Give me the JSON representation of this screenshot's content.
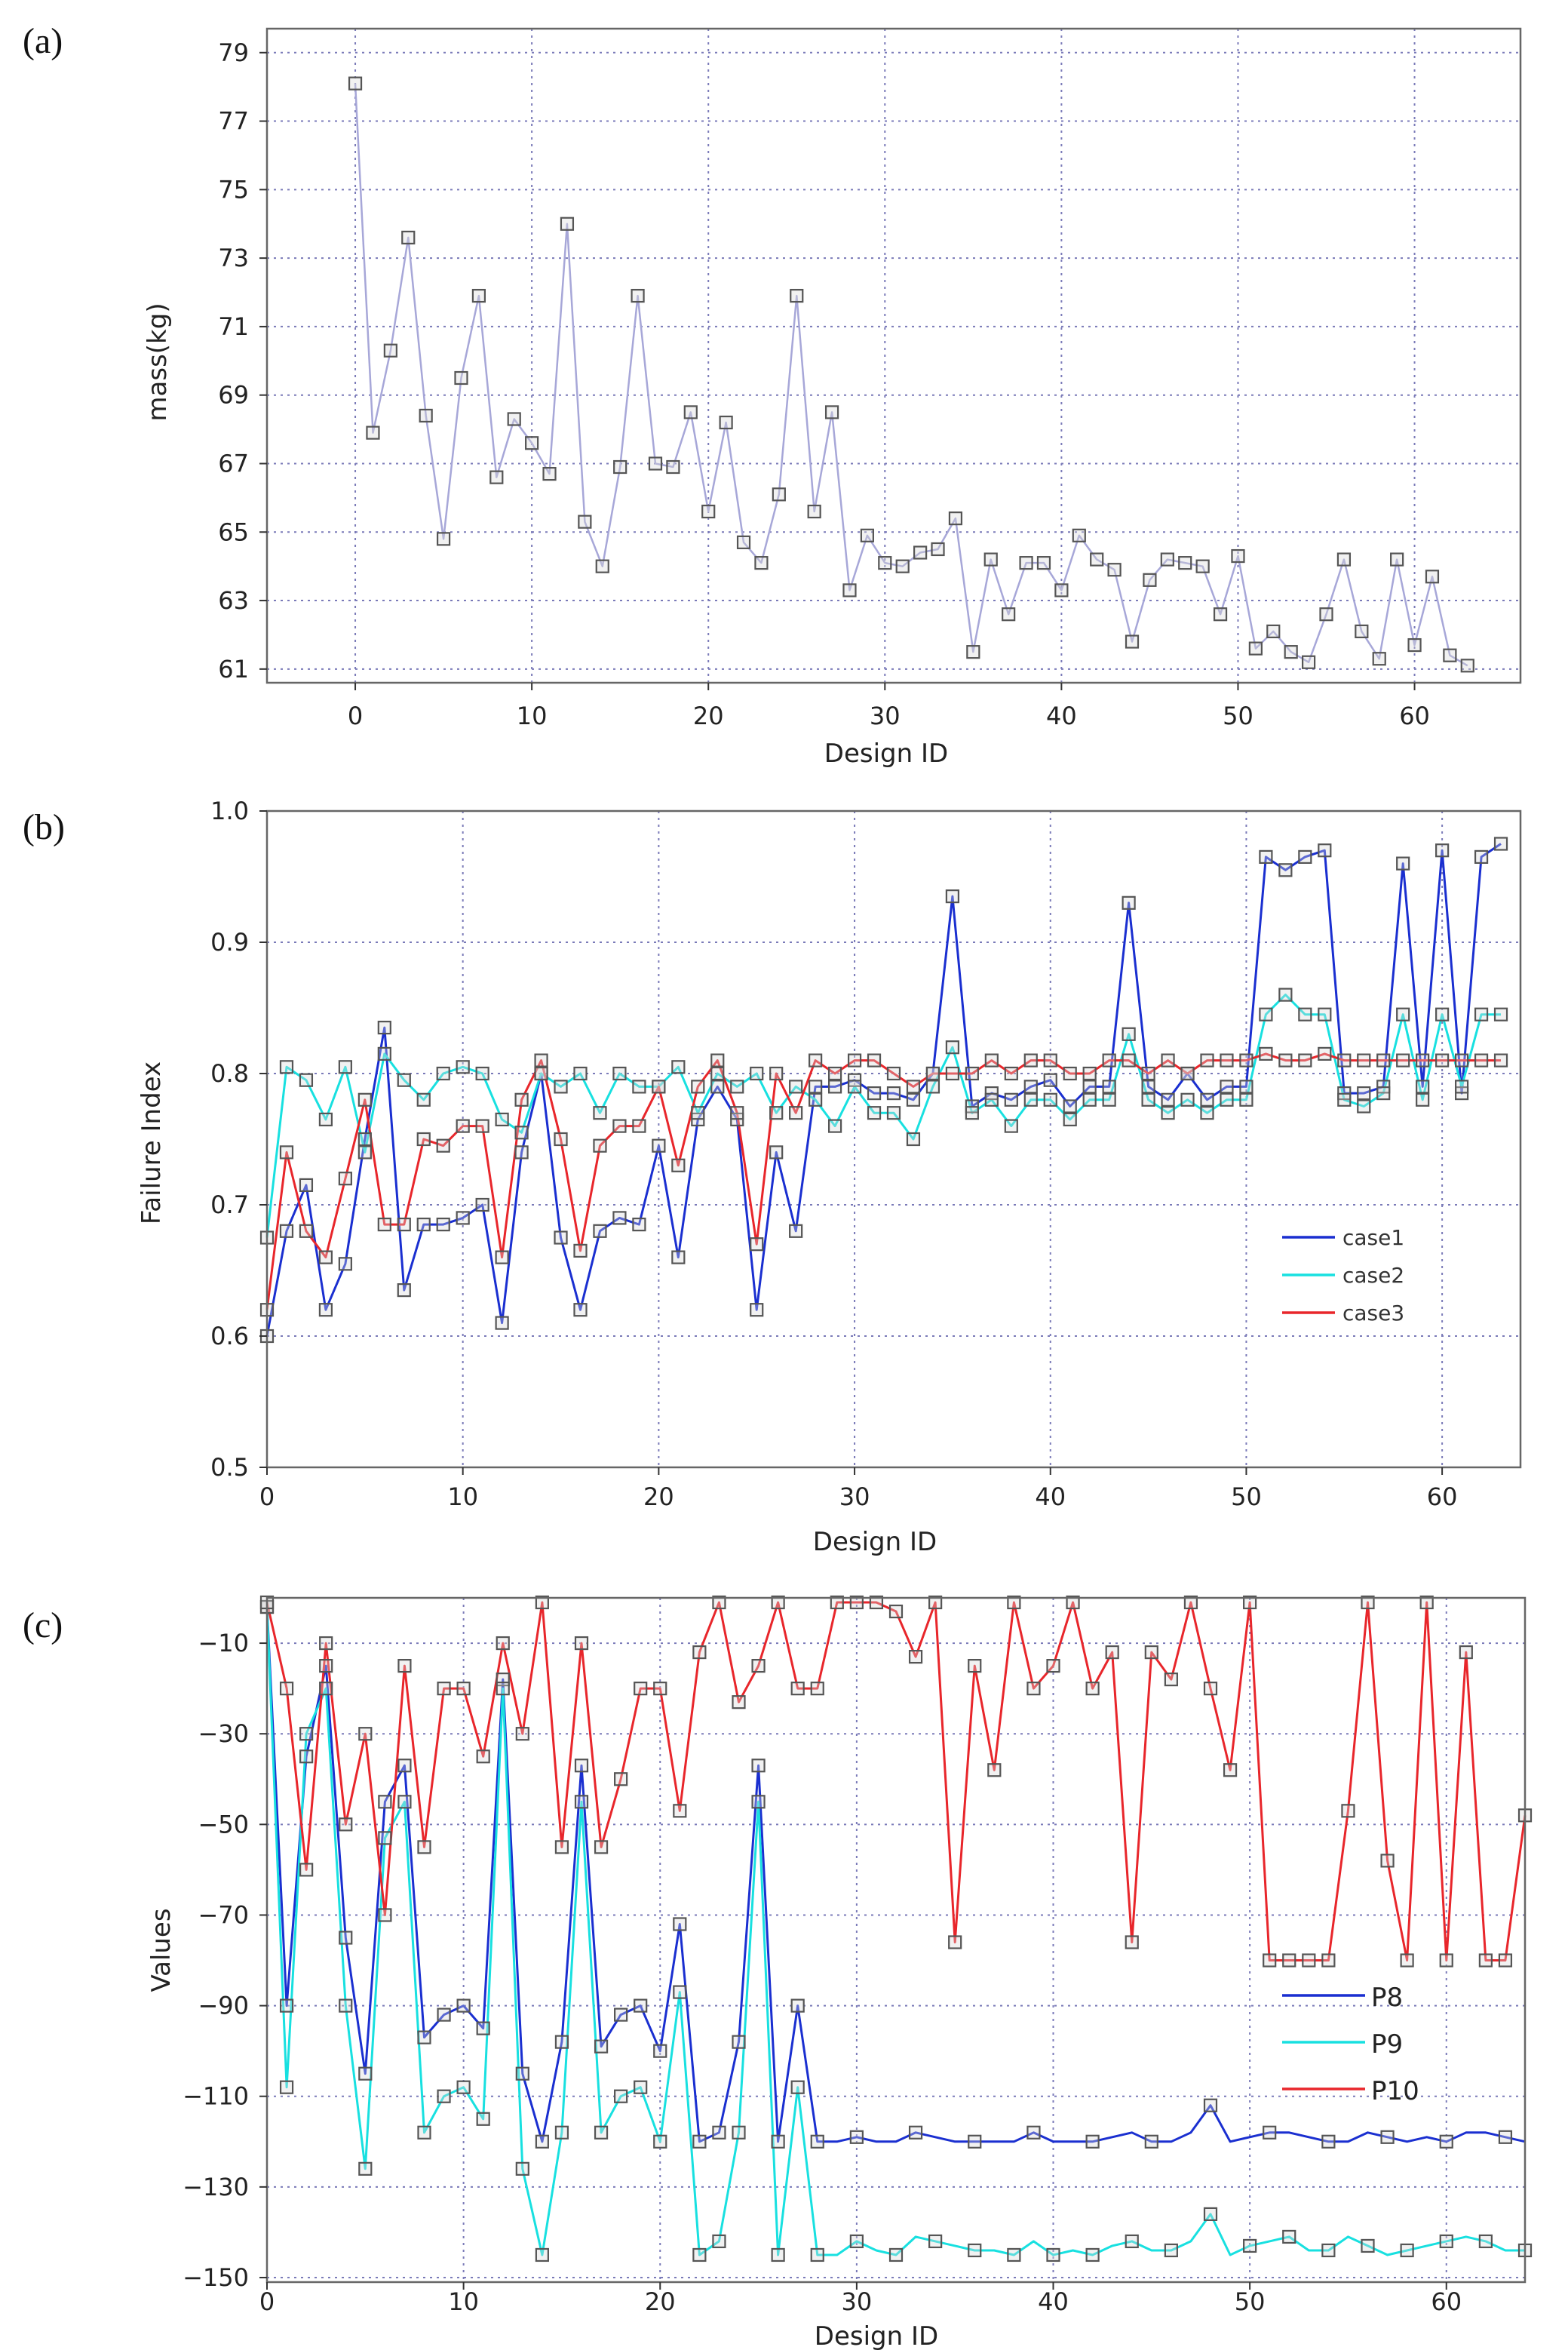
{
  "chart_data": [
    {
      "type": "line",
      "panel_label": "(a)",
      "title": "",
      "xlabel": "Design ID",
      "ylabel": "mass(kg)",
      "xlim": [
        -5,
        66
      ],
      "ylim": [
        60.6,
        79.7
      ],
      "xticks": [
        0,
        10,
        20,
        30,
        40,
        50,
        60
      ],
      "yticks": [
        61,
        63,
        65,
        67,
        69,
        71,
        73,
        75,
        77,
        79
      ],
      "grid": true,
      "series": [
        {
          "name": "mass",
          "color": "#a7a7d8",
          "markers": true,
          "x": [
            0,
            1,
            2,
            3,
            4,
            5,
            6,
            7,
            8,
            9,
            10,
            11,
            12,
            13,
            14,
            15,
            16,
            17,
            18,
            19,
            20,
            21,
            22,
            23,
            24,
            25,
            26,
            27,
            28,
            29,
            30,
            31,
            32,
            33,
            34,
            35,
            36,
            37,
            38,
            39,
            40,
            41,
            42,
            43,
            44,
            45,
            46,
            47,
            48,
            49,
            50,
            51,
            52,
            53,
            54,
            55,
            56,
            57,
            58,
            59,
            60,
            61,
            62,
            63
          ],
          "y": [
            78.1,
            67.9,
            70.3,
            73.6,
            68.4,
            64.8,
            69.5,
            71.9,
            66.6,
            68.3,
            67.6,
            66.7,
            74.0,
            65.3,
            64.0,
            66.9,
            71.9,
            67.0,
            66.9,
            68.5,
            65.6,
            68.2,
            64.7,
            64.1,
            66.1,
            71.9,
            65.6,
            68.5,
            63.3,
            64.9,
            64.1,
            64.0,
            64.4,
            64.5,
            65.4,
            61.5,
            64.2,
            62.6,
            64.1,
            64.1,
            63.3,
            64.9,
            64.2,
            63.9,
            61.8,
            63.6,
            64.2,
            64.1,
            64.0,
            62.6,
            64.3,
            61.6,
            62.1,
            61.5,
            61.2,
            62.6,
            64.2,
            62.1,
            61.3,
            64.2,
            61.7,
            63.7,
            61.4,
            61.1
          ]
        }
      ]
    },
    {
      "type": "line",
      "panel_label": "(b)",
      "title": "",
      "xlabel": "Design ID",
      "ylabel": "Failure Index",
      "xlim": [
        0,
        64
      ],
      "ylim": [
        0.5,
        1.0
      ],
      "xticks": [
        0,
        10,
        20,
        30,
        40,
        50,
        60
      ],
      "yticks": [
        0.5,
        0.6,
        0.7,
        0.8,
        0.9,
        1.0
      ],
      "ytick_labels": [
        "0.5",
        "0.6",
        "0.7",
        "0.8",
        "0.9",
        "1.0"
      ],
      "grid": true,
      "legend": [
        "case1",
        "case2",
        "case3"
      ],
      "legend_position": "center-right",
      "series": [
        {
          "name": "case1",
          "color": "#1a2fd0",
          "x": [
            0,
            1,
            2,
            3,
            4,
            5,
            6,
            7,
            8,
            9,
            10,
            11,
            12,
            13,
            14,
            15,
            16,
            17,
            18,
            19,
            20,
            21,
            22,
            23,
            24,
            25,
            26,
            27,
            28,
            29,
            30,
            31,
            32,
            33,
            34,
            35,
            36,
            37,
            38,
            39,
            40,
            41,
            42,
            43,
            44,
            45,
            46,
            47,
            48,
            49,
            50,
            51,
            52,
            53,
            54,
            55,
            56,
            57,
            58,
            59,
            60,
            61,
            62,
            63
          ],
          "y": [
            0.6,
            0.68,
            0.715,
            0.62,
            0.655,
            0.75,
            0.835,
            0.635,
            0.685,
            0.685,
            0.69,
            0.7,
            0.61,
            0.74,
            0.8,
            0.675,
            0.62,
            0.68,
            0.69,
            0.685,
            0.745,
            0.66,
            0.765,
            0.79,
            0.765,
            0.62,
            0.74,
            0.68,
            0.79,
            0.79,
            0.795,
            0.785,
            0.785,
            0.78,
            0.8,
            0.935,
            0.775,
            0.785,
            0.78,
            0.79,
            0.795,
            0.775,
            0.79,
            0.79,
            0.93,
            0.79,
            0.78,
            0.8,
            0.78,
            0.79,
            0.79,
            0.965,
            0.955,
            0.965,
            0.97,
            0.785,
            0.785,
            0.79,
            0.96,
            0.79,
            0.97,
            0.785,
            0.965,
            0.975
          ]
        },
        {
          "name": "case2",
          "color": "#18e0e0",
          "x": [
            0,
            1,
            2,
            3,
            4,
            5,
            6,
            7,
            8,
            9,
            10,
            11,
            12,
            13,
            14,
            15,
            16,
            17,
            18,
            19,
            20,
            21,
            22,
            23,
            24,
            25,
            26,
            27,
            28,
            29,
            30,
            31,
            32,
            33,
            34,
            35,
            36,
            37,
            38,
            39,
            40,
            41,
            42,
            43,
            44,
            45,
            46,
            47,
            48,
            49,
            50,
            51,
            52,
            53,
            54,
            55,
            56,
            57,
            58,
            59,
            60,
            61,
            62,
            63
          ],
          "y": [
            0.675,
            0.805,
            0.795,
            0.765,
            0.805,
            0.74,
            0.815,
            0.795,
            0.78,
            0.8,
            0.805,
            0.8,
            0.765,
            0.755,
            0.8,
            0.79,
            0.8,
            0.77,
            0.8,
            0.79,
            0.79,
            0.805,
            0.77,
            0.8,
            0.79,
            0.8,
            0.77,
            0.79,
            0.78,
            0.76,
            0.79,
            0.77,
            0.77,
            0.75,
            0.79,
            0.82,
            0.77,
            0.78,
            0.76,
            0.78,
            0.78,
            0.765,
            0.78,
            0.78,
            0.83,
            0.78,
            0.77,
            0.78,
            0.77,
            0.78,
            0.78,
            0.845,
            0.86,
            0.845,
            0.845,
            0.78,
            0.775,
            0.785,
            0.845,
            0.78,
            0.845,
            0.79,
            0.845,
            0.845
          ]
        },
        {
          "name": "case3",
          "color": "#e8262b",
          "x": [
            0,
            1,
            2,
            3,
            4,
            5,
            6,
            7,
            8,
            9,
            10,
            11,
            12,
            13,
            14,
            15,
            16,
            17,
            18,
            19,
            20,
            21,
            22,
            23,
            24,
            25,
            26,
            27,
            28,
            29,
            30,
            31,
            32,
            33,
            34,
            35,
            36,
            37,
            38,
            39,
            40,
            41,
            42,
            43,
            44,
            45,
            46,
            47,
            48,
            49,
            50,
            51,
            52,
            53,
            54,
            55,
            56,
            57,
            58,
            59,
            60,
            61,
            62,
            63
          ],
          "y": [
            0.62,
            0.74,
            0.68,
            0.66,
            0.72,
            0.78,
            0.685,
            0.685,
            0.75,
            0.745,
            0.76,
            0.76,
            0.66,
            0.78,
            0.81,
            0.75,
            0.665,
            0.745,
            0.76,
            0.76,
            0.79,
            0.73,
            0.79,
            0.81,
            0.77,
            0.67,
            0.8,
            0.77,
            0.81,
            0.8,
            0.81,
            0.81,
            0.8,
            0.79,
            0.8,
            0.8,
            0.8,
            0.81,
            0.8,
            0.81,
            0.81,
            0.8,
            0.8,
            0.81,
            0.81,
            0.8,
            0.81,
            0.8,
            0.81,
            0.81,
            0.81,
            0.815,
            0.81,
            0.81,
            0.815,
            0.81,
            0.81,
            0.81,
            0.81,
            0.81,
            0.81,
            0.81,
            0.81,
            0.81
          ]
        }
      ]
    },
    {
      "type": "line",
      "panel_label": "(c)",
      "title": "",
      "xlabel": "Design ID",
      "ylabel": "Values",
      "xlim": [
        0,
        64
      ],
      "ylim": [
        -151,
        0
      ],
      "xticks": [
        0,
        10,
        20,
        30,
        40,
        50,
        60
      ],
      "yticks": [
        -10,
        -30,
        -50,
        -70,
        -90,
        -110,
        -130,
        -150
      ],
      "ytick_labels": [
        "−10",
        "−30",
        "−50",
        "−70",
        "−90",
        "−110",
        "−130",
        "−150"
      ],
      "grid": true,
      "legend": [
        "P8",
        "P9",
        "P10"
      ],
      "legend_position": "lower-right",
      "series": [
        {
          "name": "P8",
          "color": "#1a2fd0",
          "x": [
            0,
            1,
            2,
            3,
            4,
            5,
            6,
            7,
            8,
            9,
            10,
            11,
            12,
            13,
            14,
            15,
            16,
            17,
            18,
            19,
            20,
            21,
            22,
            23,
            24,
            25,
            26,
            27,
            28,
            29,
            30,
            31,
            32,
            33,
            34,
            35,
            36,
            37,
            38,
            39,
            40,
            41,
            42,
            43,
            44,
            45,
            46,
            47,
            48,
            49,
            50,
            51,
            52,
            53,
            54,
            55,
            56,
            57,
            58,
            59,
            60,
            61,
            62,
            63,
            64
          ],
          "y": [
            -2,
            -90,
            -35,
            -15,
            -75,
            -105,
            -45,
            -37,
            -97,
            -92,
            -90,
            -95,
            -18,
            -105,
            -120,
            -98,
            -37,
            -99,
            -92,
            -90,
            -100,
            -72,
            -120,
            -118,
            -98,
            -37,
            -120,
            -90,
            -120,
            -120,
            -119,
            -120,
            -120,
            -118,
            -119,
            -120,
            -120,
            -120,
            -120,
            -118,
            -120,
            -120,
            -120,
            -119,
            -118,
            -120,
            -120,
            -118,
            -112,
            -120,
            -119,
            -118,
            -118,
            -119,
            -120,
            -120,
            -118,
            -119,
            -120,
            -119,
            -120,
            -118,
            -118,
            -119,
            -120
          ]
        },
        {
          "name": "P9",
          "color": "#18e0e0",
          "x": [
            0,
            1,
            2,
            3,
            4,
            5,
            6,
            7,
            8,
            9,
            10,
            11,
            12,
            13,
            14,
            15,
            16,
            17,
            18,
            19,
            20,
            21,
            22,
            23,
            24,
            25,
            26,
            27,
            28,
            29,
            30,
            31,
            32,
            33,
            34,
            35,
            36,
            37,
            38,
            39,
            40,
            41,
            42,
            43,
            44,
            45,
            46,
            47,
            48,
            49,
            50,
            51,
            52,
            53,
            54,
            55,
            56,
            57,
            58,
            59,
            60,
            61,
            62,
            63,
            64
          ],
          "y": [
            -2,
            -108,
            -30,
            -20,
            -90,
            -126,
            -53,
            -45,
            -118,
            -110,
            -108,
            -115,
            -20,
            -126,
            -145,
            -118,
            -45,
            -118,
            -110,
            -108,
            -120,
            -87,
            -145,
            -142,
            -118,
            -45,
            -145,
            -108,
            -145,
            -145,
            -142,
            -144,
            -145,
            -141,
            -142,
            -143,
            -144,
            -144,
            -145,
            -142,
            -145,
            -144,
            -145,
            -143,
            -142,
            -144,
            -144,
            -142,
            -136,
            -145,
            -143,
            -142,
            -141,
            -144,
            -144,
            -141,
            -143,
            -145,
            -144,
            -143,
            -142,
            -141,
            -142,
            -144,
            -144
          ]
        },
        {
          "name": "P10",
          "color": "#e8262b",
          "x": [
            0,
            1,
            2,
            3,
            4,
            5,
            6,
            7,
            8,
            9,
            10,
            11,
            12,
            13,
            14,
            15,
            16,
            17,
            18,
            19,
            20,
            21,
            22,
            23,
            24,
            25,
            26,
            27,
            28,
            29,
            30,
            31,
            32,
            33,
            34,
            35,
            36,
            37,
            38,
            39,
            40,
            41,
            42,
            43,
            44,
            45,
            46,
            47,
            48,
            49,
            50,
            51,
            52,
            53,
            54,
            55,
            56,
            57,
            58,
            59,
            60,
            61,
            62,
            63,
            64
          ],
          "y": [
            -1,
            -20,
            -60,
            -10,
            -50,
            -30,
            -70,
            -15,
            -55,
            -20,
            -20,
            -35,
            -10,
            -30,
            -1,
            -55,
            -10,
            -55,
            -40,
            -20,
            -20,
            -47,
            -12,
            -1,
            -23,
            -15,
            -1,
            -20,
            -20,
            -1,
            -1,
            -1,
            -3,
            -13,
            -1,
            -76,
            -15,
            -38,
            -1,
            -20,
            -15,
            -1,
            -20,
            -12,
            -76,
            -12,
            -18,
            -1,
            -20,
            -38,
            -1,
            -80,
            -80,
            -80,
            -80,
            -47,
            -1,
            -58,
            -80,
            -1,
            -80,
            -12,
            -80,
            -80,
            -48
          ]
        }
      ]
    }
  ]
}
